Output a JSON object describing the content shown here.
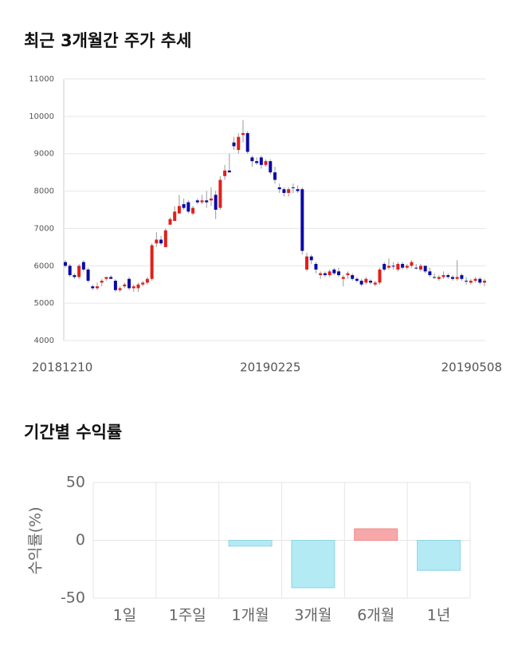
{
  "chart_data": [
    {
      "type": "candlestick",
      "title": "최근 3개월간 주가 추세",
      "categories": [
        "20181210",
        null,
        null,
        null,
        null,
        null,
        null,
        null,
        null,
        null,
        null,
        null,
        null,
        null,
        null,
        null,
        null,
        null,
        null,
        null,
        null,
        null,
        null,
        null,
        null,
        null,
        null,
        null,
        null,
        null,
        null,
        null,
        null,
        null,
        null,
        null,
        null,
        null,
        null,
        null,
        null,
        null,
        null,
        null,
        null,
        "20190225",
        null,
        null,
        null,
        null,
        null,
        null,
        null,
        null,
        null,
        null,
        null,
        null,
        null,
        null,
        null,
        null,
        null,
        null,
        null,
        null,
        null,
        null,
        null,
        null,
        null,
        null,
        null,
        null,
        null,
        null,
        null,
        null,
        null,
        null,
        null,
        null,
        null,
        null,
        null,
        null,
        null,
        null,
        null,
        null,
        null,
        null,
        "20190508"
      ],
      "series": [
        {
          "up_color": "#e0201a",
          "down_color": "#0a0aa8",
          "open": [
            6100,
            6000,
            5750,
            5700,
            6100,
            5900,
            5450,
            5400,
            5550,
            5650,
            5700,
            5600,
            5350,
            5450,
            5650,
            5400,
            5400,
            5500,
            5550,
            5650,
            6600,
            6700,
            6500,
            7100,
            7200,
            7400,
            7650,
            7700,
            7400,
            7750,
            7700,
            7750,
            7750,
            7900,
            7550,
            8400,
            8550,
            9300,
            9100,
            9500,
            9550,
            8900,
            8800,
            8900,
            8700,
            8800,
            8500,
            8100,
            8050,
            7950,
            8100,
            8050,
            8050,
            5900,
            6250,
            6050,
            5750,
            5800,
            5750,
            5900,
            5850,
            5650,
            5750,
            5750,
            5650,
            5600,
            5550,
            5600,
            5500,
            5550,
            6050,
            5950,
            6000,
            5900,
            6050,
            5950,
            6000,
            5950,
            5900,
            6000,
            5850,
            5700,
            5650,
            5700,
            5750,
            5700,
            5650,
            5750,
            5600,
            5550,
            5600,
            5650,
            5550
          ],
          "high": [
            6150,
            6050,
            5800,
            6050,
            6150,
            5950,
            5500,
            5550,
            5650,
            5700,
            5750,
            5650,
            5450,
            5550,
            5700,
            5500,
            5550,
            5600,
            5700,
            6600,
            6900,
            6800,
            7000,
            7300,
            7600,
            7900,
            7800,
            7750,
            7600,
            7800,
            7900,
            8000,
            8100,
            8000,
            8400,
            8700,
            9000,
            9450,
            9550,
            9900,
            9600,
            8950,
            8900,
            8950,
            8850,
            8850,
            8650,
            8200,
            8100,
            8100,
            8200,
            8150,
            8100,
            6350,
            6300,
            6100,
            5850,
            5850,
            5900,
            5950,
            5950,
            5750,
            5850,
            5800,
            5700,
            5650,
            5700,
            5650,
            5600,
            5950,
            6100,
            6200,
            6100,
            6100,
            6100,
            6050,
            6150,
            6050,
            6050,
            6000,
            5950,
            5800,
            5750,
            5850,
            5800,
            5750,
            6150,
            5800,
            5700,
            5650,
            5700,
            5700,
            5650
          ],
          "low": [
            5950,
            5700,
            5650,
            5650,
            5850,
            5550,
            5350,
            5350,
            5450,
            5600,
            5650,
            5300,
            5300,
            5400,
            5350,
            5300,
            5300,
            5450,
            5500,
            5600,
            6500,
            6550,
            6500,
            7100,
            7200,
            7400,
            7500,
            7400,
            7350,
            7650,
            7650,
            7550,
            7600,
            7250,
            7500,
            8300,
            8500,
            9100,
            9000,
            9300,
            9000,
            8650,
            8700,
            8600,
            8650,
            8450,
            8200,
            7950,
            7850,
            7850,
            7950,
            7950,
            6300,
            5850,
            6050,
            5800,
            5650,
            5700,
            5700,
            5750,
            5700,
            5450,
            5650,
            5600,
            5550,
            5450,
            5500,
            5500,
            5450,
            5500,
            5850,
            5900,
            5900,
            5850,
            5900,
            5900,
            5950,
            5900,
            5850,
            5800,
            5700,
            5650,
            5600,
            5650,
            5650,
            5600,
            5600,
            5600,
            5500,
            5500,
            5550,
            5500,
            5450
          ],
          "close": [
            6000,
            5750,
            5700,
            6000,
            5900,
            5600,
            5400,
            5450,
            5600,
            5700,
            5650,
            5350,
            5400,
            5500,
            5400,
            5450,
            5500,
            5550,
            5650,
            6550,
            6700,
            6600,
            6950,
            7250,
            7450,
            7600,
            7550,
            7450,
            7550,
            7700,
            7750,
            7700,
            7800,
            7500,
            8300,
            8550,
            8500,
            9200,
            9450,
            9550,
            9050,
            8800,
            8750,
            8700,
            8800,
            8500,
            8300,
            8050,
            7950,
            8050,
            8100,
            8000,
            6400,
            6250,
            6150,
            5900,
            5800,
            5750,
            5850,
            5800,
            5750,
            5700,
            5800,
            5650,
            5600,
            5500,
            5650,
            5550,
            5550,
            5900,
            5900,
            6000,
            6000,
            6050,
            5950,
            6000,
            6100,
            5950,
            6000,
            5850,
            5750,
            5700,
            5700,
            5750,
            5700,
            5650,
            5700,
            5650,
            5600,
            5600,
            5650,
            5550,
            5600
          ]
        }
      ],
      "ylim": [
        4000,
        11000
      ],
      "yticks": [
        4000,
        5000,
        6000,
        7000,
        8000,
        9000,
        10000,
        11000
      ],
      "grid": true
    },
    {
      "type": "bar",
      "title": "기간별 수익률",
      "ylabel": "수익률(%)",
      "categories": [
        "1일",
        "1주일",
        "1개월",
        "3개월",
        "6개월",
        "1년"
      ],
      "values": [
        0,
        0,
        -5,
        -41,
        10,
        -26
      ],
      "positive_color": "#f7a8a8",
      "negative_color": "#b3eaf3",
      "ylim": [
        -50,
        50
      ],
      "yticks": [
        -50,
        0,
        50
      ],
      "grid": true
    }
  ]
}
